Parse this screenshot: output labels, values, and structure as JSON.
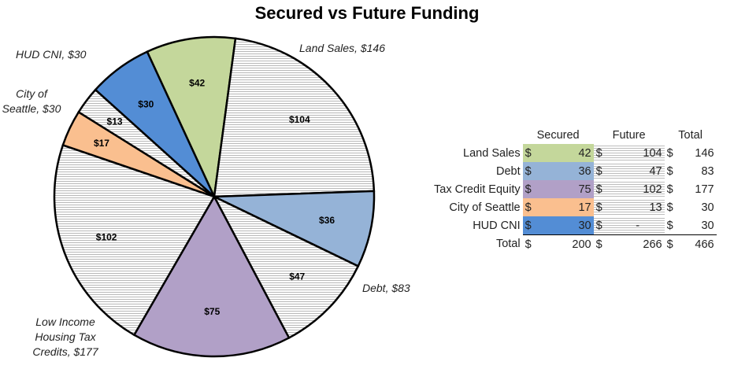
{
  "chart_data": {
    "type": "pie",
    "title": "Secured vs Future Funding",
    "slices": [
      {
        "category": "Land Sales",
        "kind": "Secured",
        "value": 42,
        "label": "$42",
        "color": "#c4d79b"
      },
      {
        "category": "Land Sales",
        "kind": "Future",
        "value": 104,
        "label": "$104",
        "color": "hatch"
      },
      {
        "category": "Debt",
        "kind": "Secured",
        "value": 36,
        "label": "$36",
        "color": "#95b3d7"
      },
      {
        "category": "Debt",
        "kind": "Future",
        "value": 47,
        "label": "$47",
        "color": "hatch"
      },
      {
        "category": "Tax Credit Equity",
        "kind": "Secured",
        "value": 75,
        "label": "$75",
        "color": "#b1a0c7"
      },
      {
        "category": "Tax Credit Equity",
        "kind": "Future",
        "value": 102,
        "label": "$102",
        "color": "hatch"
      },
      {
        "category": "City of Seattle",
        "kind": "Secured",
        "value": 17,
        "label": "$17",
        "color": "#fabf8f"
      },
      {
        "category": "City of Seattle",
        "kind": "Future",
        "value": 13,
        "label": "$13",
        "color": "hatch"
      },
      {
        "category": "HUD CNI",
        "kind": "Secured",
        "value": 30,
        "label": "$30",
        "color": "#538dd5"
      },
      {
        "category": "HUD CNI",
        "kind": "Future",
        "value": 0,
        "label": "",
        "color": "hatch"
      }
    ],
    "category_labels": {
      "land": "Land Sales, $146",
      "debt": "Debt, $83",
      "tax": "Low Income Housing Tax Credits, $177",
      "city": "City of Seattle, $30",
      "hud": "HUD CNI, $30"
    }
  },
  "table": {
    "headers": [
      "Secured",
      "Future",
      "Total"
    ],
    "currency": "$",
    "rows": [
      {
        "label": "Land Sales",
        "secured": "42",
        "future": "104",
        "total": "146",
        "color": "#c4d79b"
      },
      {
        "label": "Debt",
        "secured": "36",
        "future": "47",
        "total": "83",
        "color": "#95b3d7"
      },
      {
        "label": "Tax Credit Equity",
        "secured": "75",
        "future": "102",
        "total": "177",
        "color": "#b1a0c7"
      },
      {
        "label": "City of Seattle",
        "secured": "17",
        "future": "13",
        "total": "30",
        "color": "#fabf8f"
      },
      {
        "label": "HUD CNI",
        "secured": "30",
        "future": "-",
        "total": "30",
        "color": "#538dd5"
      }
    ],
    "total": {
      "label": "Total",
      "secured": "200",
      "future": "266",
      "total": "466"
    }
  }
}
